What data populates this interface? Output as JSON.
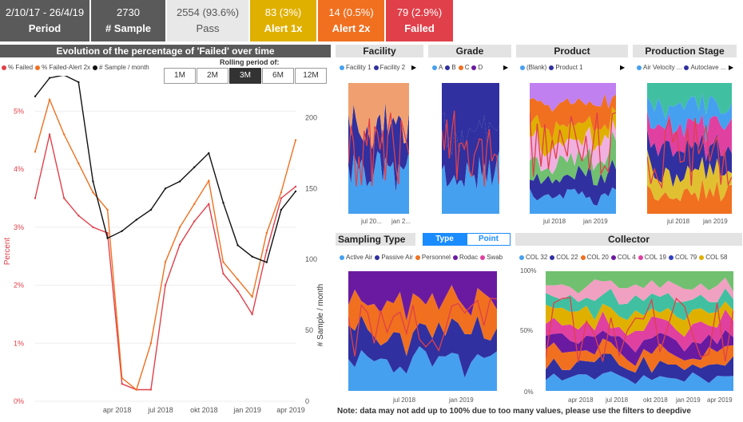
{
  "kpis": [
    {
      "value": "2/10/17 - 26/4/19",
      "label": "Period",
      "color": "#5a5a5a",
      "text": "#ffffff"
    },
    {
      "value": "2730",
      "label": "# Sample",
      "color": "#5a5a5a",
      "text": "#ffffff"
    },
    {
      "value": "2554 (93.6%)",
      "label": "Pass",
      "color": "#e8e8e8",
      "text": "#555555"
    },
    {
      "value": "83 (3%)",
      "label": "Alert 1x",
      "color": "#e0b000",
      "text": "#ffffff"
    },
    {
      "value": "14 (0.5%)",
      "label": "Alert 2x",
      "color": "#f07020",
      "text": "#ffffff"
    },
    {
      "value": "79 (2.9%)",
      "label": "Failed",
      "color": "#e0404a",
      "text": "#ffffff"
    }
  ],
  "main_chart": {
    "title": "Evolution of the percentage of 'Failed' over time",
    "rolling_label": "Rolling period of:",
    "rolling_options": [
      "1M",
      "2M",
      "3M",
      "6M",
      "12M"
    ],
    "rolling_selected": "3M",
    "legend": [
      {
        "name": "% Failed",
        "color": "#e0404a"
      },
      {
        "name": "% Failed-Alert 2x",
        "color": "#f07020"
      },
      {
        "name": "# Sample / month",
        "color": "#111111"
      }
    ],
    "y_left_label": "Percent",
    "y_right_label": "# Sample / month",
    "y_left_ticks": [
      "0%",
      "1%",
      "2%",
      "3%",
      "4%",
      "5%"
    ],
    "y_right_ticks": [
      "0",
      "50",
      "100",
      "150",
      "200"
    ],
    "x_ticks": [
      "apr 2018",
      "jul 2018",
      "okt 2018",
      "jan 2019",
      "apr 2019"
    ]
  },
  "chart_data": {
    "type": "line",
    "x": [
      "2017-10",
      "2017-11",
      "2017-12",
      "2018-01",
      "2018-02",
      "2018-03",
      "2018-04",
      "2018-05",
      "2018-06",
      "2018-07",
      "2018-08",
      "2018-09",
      "2018-10",
      "2018-11",
      "2018-12",
      "2019-01",
      "2019-02",
      "2019-03",
      "2019-04"
    ],
    "series": [
      {
        "name": "% Failed",
        "axis": "left",
        "values": [
          3.5,
          4.6,
          3.5,
          3.2,
          3.0,
          2.9,
          0.3,
          0.2,
          0.2,
          2.0,
          2.7,
          3.1,
          3.4,
          2.2,
          1.9,
          1.5,
          2.6,
          3.5,
          3.7
        ]
      },
      {
        "name": "% Failed-Alert 2x",
        "axis": "left",
        "values": [
          4.3,
          5.2,
          4.6,
          4.1,
          3.6,
          3.3,
          0.4,
          0.2,
          1.0,
          2.4,
          3.0,
          3.4,
          3.8,
          2.4,
          2.1,
          1.8,
          2.9,
          3.6,
          4.5
        ]
      },
      {
        "name": "# Sample / month",
        "axis": "right",
        "values": [
          215,
          228,
          230,
          225,
          155,
          115,
          120,
          128,
          135,
          150,
          155,
          165,
          175,
          140,
          110,
          102,
          98,
          135,
          148
        ]
      }
    ],
    "ylim_left": [
      0,
      5.5
    ],
    "ylim_right": [
      0,
      225
    ]
  },
  "panels": {
    "facility": {
      "title": "Facility",
      "legend": [
        {
          "name": "Facility 1",
          "color": "#46a0f0"
        },
        {
          "name": "Facility 2",
          "color": "#3030a0"
        }
      ],
      "x_ticks": [
        "jul 20...",
        "jan 2..."
      ]
    },
    "grade": {
      "title": "Grade",
      "legend": [
        {
          "name": "A",
          "color": "#46a0f0"
        },
        {
          "name": "B",
          "color": "#3030a0"
        },
        {
          "name": "C",
          "color": "#f07020"
        },
        {
          "name": "D",
          "color": "#6a1aa0"
        }
      ],
      "x_ticks": []
    },
    "product": {
      "title": "Product",
      "legend": [
        {
          "name": "(Blank)",
          "color": "#46a0f0"
        },
        {
          "name": "Product 1",
          "color": "#3030a0"
        }
      ],
      "x_ticks": [
        "jul 2018",
        "jan 2019"
      ]
    },
    "stage": {
      "title": "Production Stage",
      "legend": [
        {
          "name": "Air Velocity ...",
          "color": "#46a0f0"
        },
        {
          "name": "Autoclave ...",
          "color": "#3030a0"
        }
      ],
      "x_ticks": [
        "jul 2018",
        "jan 2019"
      ]
    },
    "sampling": {
      "title": "Sampling Type",
      "toggle": [
        "Type",
        "Point"
      ],
      "legend": [
        {
          "name": "Active Air",
          "color": "#46a0f0"
        },
        {
          "name": "Passive Air",
          "color": "#3030a0"
        },
        {
          "name": "Personnel",
          "color": "#f07020"
        },
        {
          "name": "Rodac",
          "color": "#6a1aa0"
        },
        {
          "name": "Swab",
          "color": "#e040a0"
        }
      ],
      "x_ticks": [
        "jul 2018",
        "jan 2019"
      ]
    },
    "collector": {
      "title": "Collector",
      "legend": [
        {
          "name": "COL 32",
          "color": "#46a0f0"
        },
        {
          "name": "COL 22",
          "color": "#3030a0"
        },
        {
          "name": "COL 20",
          "color": "#f07020"
        },
        {
          "name": "COL 4",
          "color": "#6a1aa0"
        },
        {
          "name": "COL 19",
          "color": "#e040a0"
        },
        {
          "name": "COL 79",
          "color": "#3040c0"
        },
        {
          "name": "COL 58",
          "color": "#e0b000"
        }
      ],
      "y_ticks": [
        "0%",
        "50%",
        "100%"
      ],
      "x_ticks": [
        "apr 2018",
        "jul 2018",
        "okt 2018",
        "jan 2019",
        "apr 2019"
      ]
    }
  },
  "note": "Note: data may not add up to 100% due to too many values, please use the filters to deepdive"
}
